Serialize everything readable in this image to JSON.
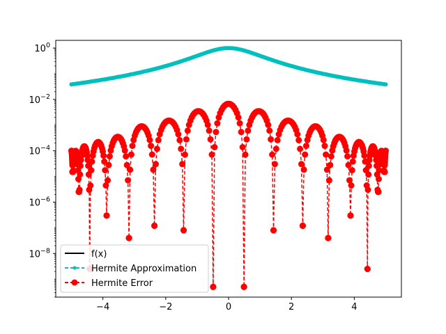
{
  "chart_data": {
    "type": "line",
    "title": "",
    "xlabel": "",
    "ylabel": "",
    "xlim": [
      -5.5,
      5.5
    ],
    "ylim_log10": [
      -9.7,
      0.3
    ],
    "yscale": "log",
    "grid": false,
    "legend_position": "lower left",
    "x_ticks": [
      {
        "value": -4,
        "label": "−4"
      },
      {
        "value": -2,
        "label": "−2"
      },
      {
        "value": 0,
        "label": "0"
      },
      {
        "value": 2,
        "label": "2"
      },
      {
        "value": 4,
        "label": "4"
      }
    ],
    "y_ticks": [
      {
        "exp": 0,
        "base": "10",
        "sup": "0"
      },
      {
        "exp": -2,
        "base": "10",
        "sup": "−2"
      },
      {
        "exp": -4,
        "base": "10",
        "sup": "−4"
      },
      {
        "exp": -6,
        "base": "10",
        "sup": "−6"
      },
      {
        "exp": -8,
        "base": "10",
        "sup": "−8"
      }
    ],
    "series": [
      {
        "name": "f(x)",
        "color": "#000000",
        "line_style": "solid",
        "function": "1/(1+x^2)",
        "x_range": [
          -5,
          5
        ]
      },
      {
        "name": "Hermite Approximation",
        "color": "#00bfbf",
        "line_style": "dashed",
        "marker": "point",
        "function": "1/(1+x^2)",
        "x_range": [
          -5,
          5
        ]
      },
      {
        "name": "Hermite Error",
        "color": "#ff0000",
        "line_style": "dashed",
        "marker": "circle",
        "x_range": [
          -5,
          5
        ],
        "lobe_peaks": [
          {
            "x": 0.0,
            "y": 0.0068
          },
          {
            "x": 0.92,
            "y": 0.0035
          },
          {
            "x": 1.88,
            "y": 0.0015
          },
          {
            "x": 2.78,
            "y": 0.0009
          },
          {
            "x": 3.55,
            "y": 0.00035
          },
          {
            "x": 4.15,
            "y": 0.00022
          },
          {
            "x": 4.6,
            "y": 0.00015
          },
          {
            "x": 4.88,
            "y": 0.0001
          }
        ],
        "dip_minima": [
          {
            "x": 0.49,
            "y": 5e-10
          },
          {
            "x": 1.43,
            "y": 8e-08
          },
          {
            "x": 2.36,
            "y": 1.2e-07
          },
          {
            "x": 3.17,
            "y": 4e-08
          },
          {
            "x": 3.88,
            "y": 3e-07
          },
          {
            "x": 4.42,
            "y": 2.5e-09
          },
          {
            "x": 4.76,
            "y": 2.5e-06
          },
          {
            "x": 4.97,
            "y": 1.5e-05
          }
        ]
      }
    ]
  }
}
